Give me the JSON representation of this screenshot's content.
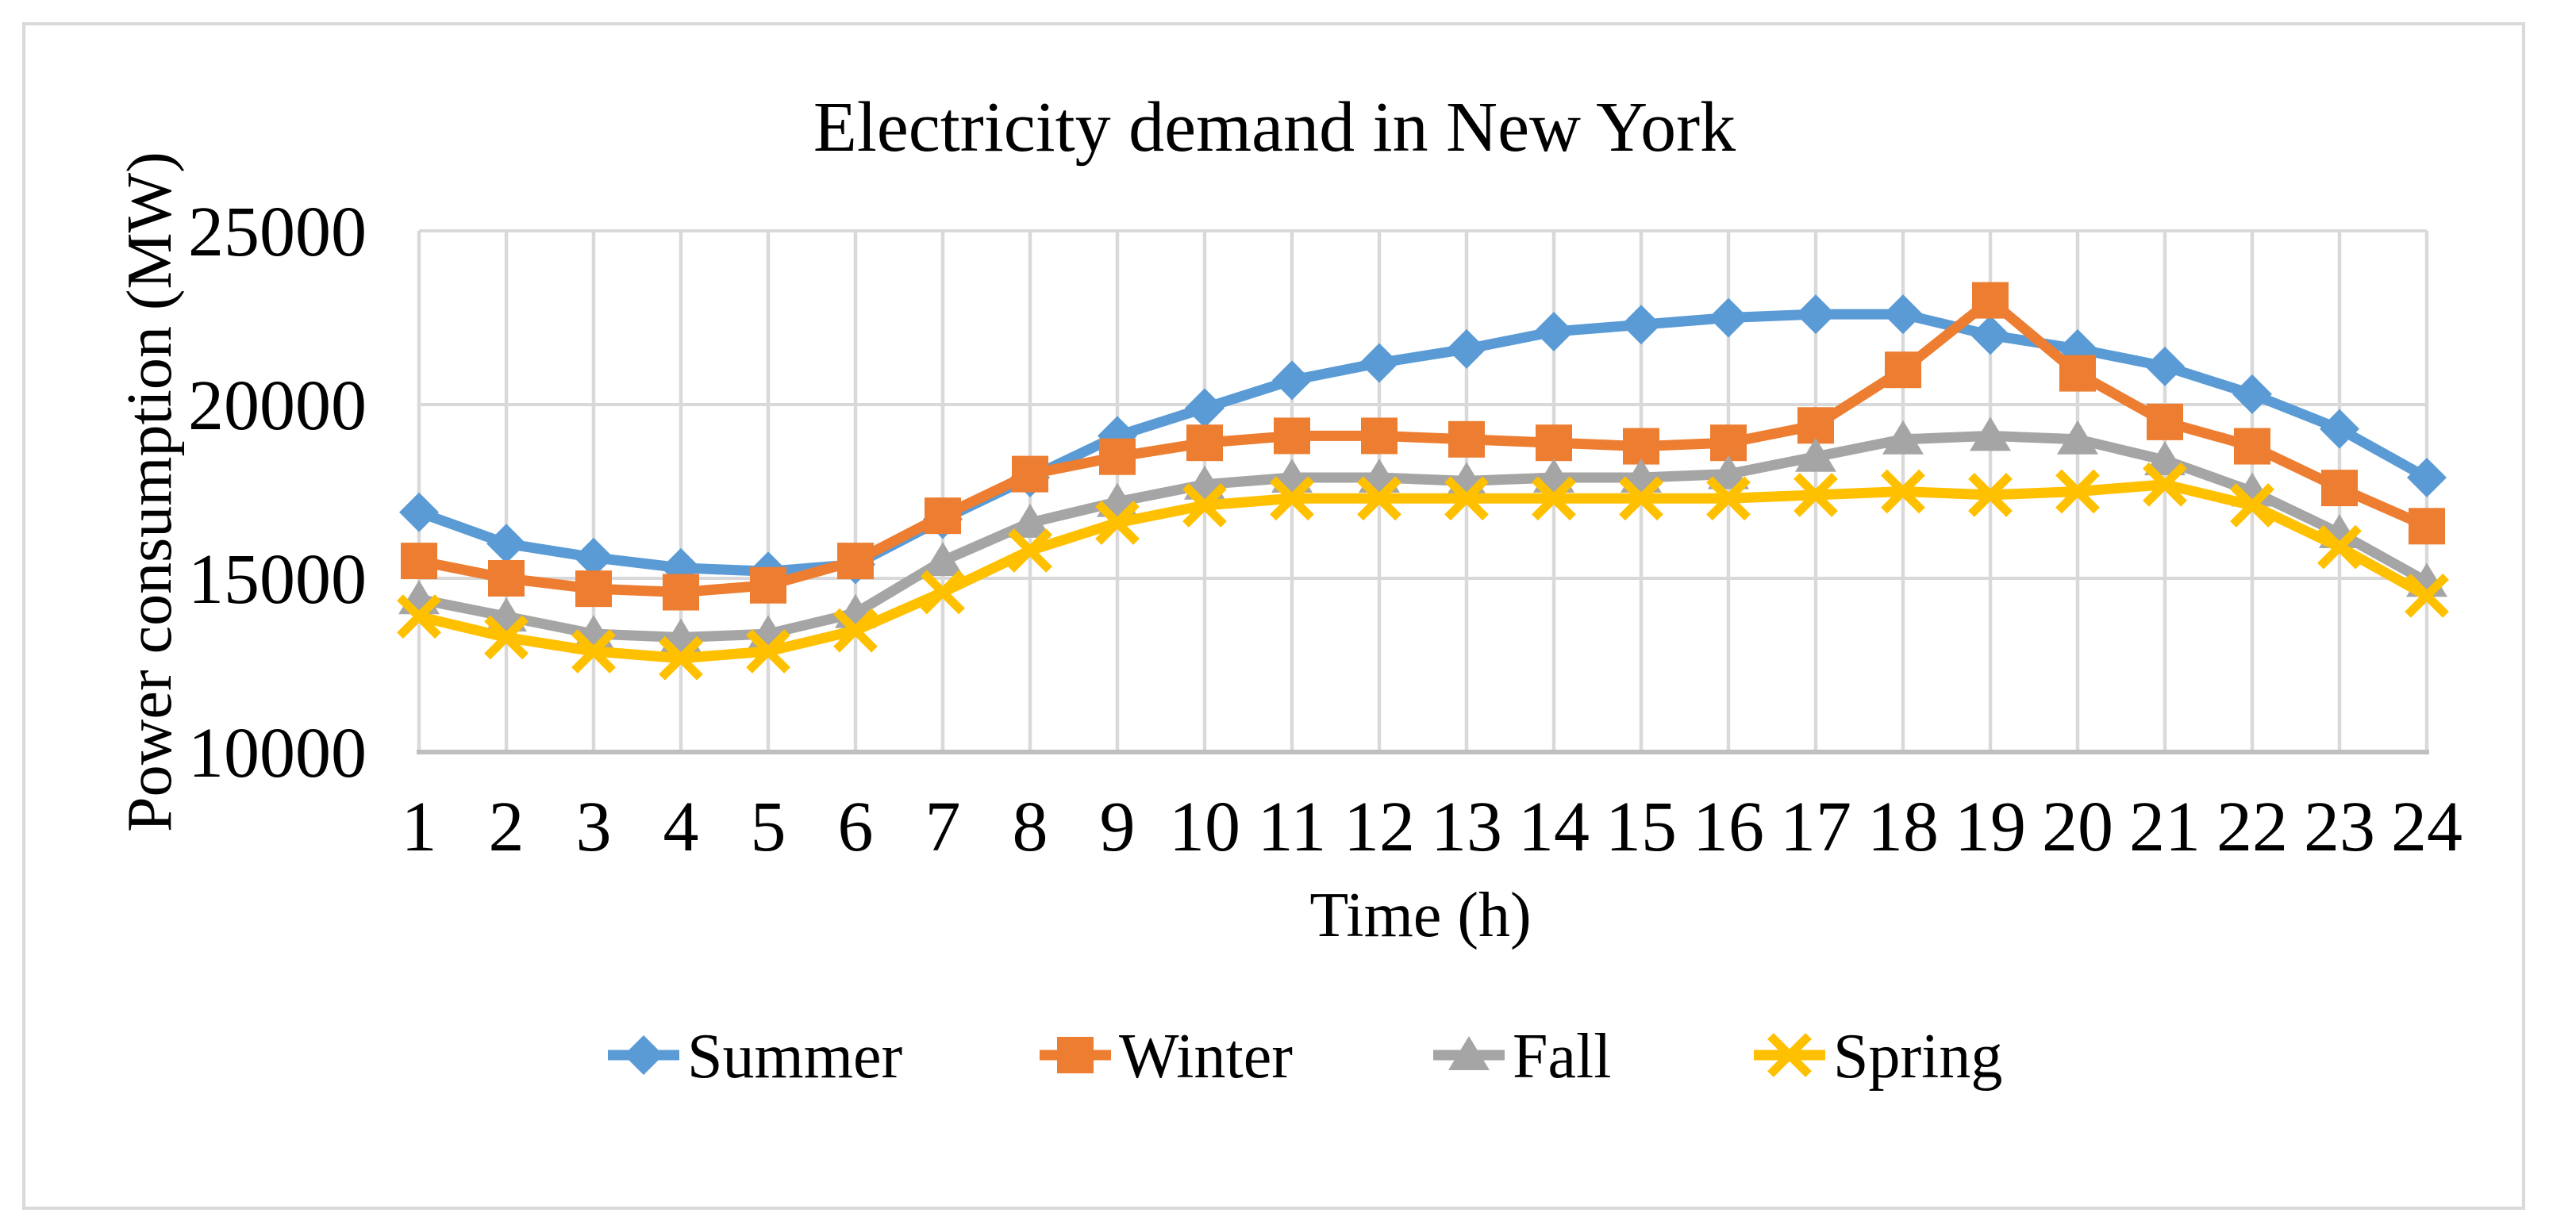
{
  "chart": {
    "title": "Electricity demand in New York",
    "x_axis_title": "Time (h)",
    "y_axis_title": "Power consumption (MW)"
  },
  "chart_data": {
    "type": "line",
    "title": "Electricity demand in New York",
    "xlabel": "Time (h)",
    "ylabel": "Power consumption (MW)",
    "x": [
      1,
      2,
      3,
      4,
      5,
      6,
      7,
      8,
      9,
      10,
      11,
      12,
      13,
      14,
      15,
      16,
      17,
      18,
      19,
      20,
      21,
      22,
      23,
      24
    ],
    "y_ticks": [
      10000,
      15000,
      20000,
      25000
    ],
    "ylim": [
      10000,
      25000
    ],
    "grid": true,
    "legend_position": "bottom",
    "series": [
      {
        "name": "Summer",
        "color": "#5B9BD5",
        "marker": "diamond",
        "values": [
          16900,
          16000,
          15600,
          15300,
          15200,
          15400,
          16700,
          17900,
          19100,
          19900,
          20700,
          21200,
          21600,
          22100,
          22300,
          22500,
          22600,
          22600,
          22000,
          21600,
          21100,
          20300,
          19300,
          17900
        ]
      },
      {
        "name": "Winter",
        "color": "#ED7D31",
        "marker": "square",
        "values": [
          15500,
          15000,
          14700,
          14600,
          14800,
          15500,
          16800,
          18000,
          18500,
          18900,
          19100,
          19100,
          19000,
          18900,
          18800,
          18900,
          19400,
          21000,
          23000,
          20900,
          19500,
          18800,
          17600,
          16500
        ]
      },
      {
        "name": "Fall",
        "color": "#A5A5A5",
        "marker": "triangle",
        "values": [
          14400,
          13900,
          13400,
          13300,
          13400,
          14000,
          15500,
          16600,
          17200,
          17700,
          17900,
          17900,
          17800,
          17900,
          17900,
          18000,
          18500,
          19000,
          19100,
          19000,
          18400,
          17500,
          16300,
          14900
        ]
      },
      {
        "name": "Spring",
        "color": "#FFC000",
        "marker": "x",
        "values": [
          13900,
          13300,
          12900,
          12700,
          12900,
          13500,
          14600,
          15800,
          16600,
          17100,
          17300,
          17300,
          17300,
          17300,
          17300,
          17300,
          17400,
          17500,
          17400,
          17500,
          17700,
          17100,
          15900,
          14500
        ]
      }
    ]
  },
  "styles": {
    "gridline_color": "#D9D9D9",
    "axis_line_color": "#BFBFBF",
    "border_color": "#D9D9D9",
    "text_color": "#000000",
    "background_color": "#FFFFFF"
  }
}
